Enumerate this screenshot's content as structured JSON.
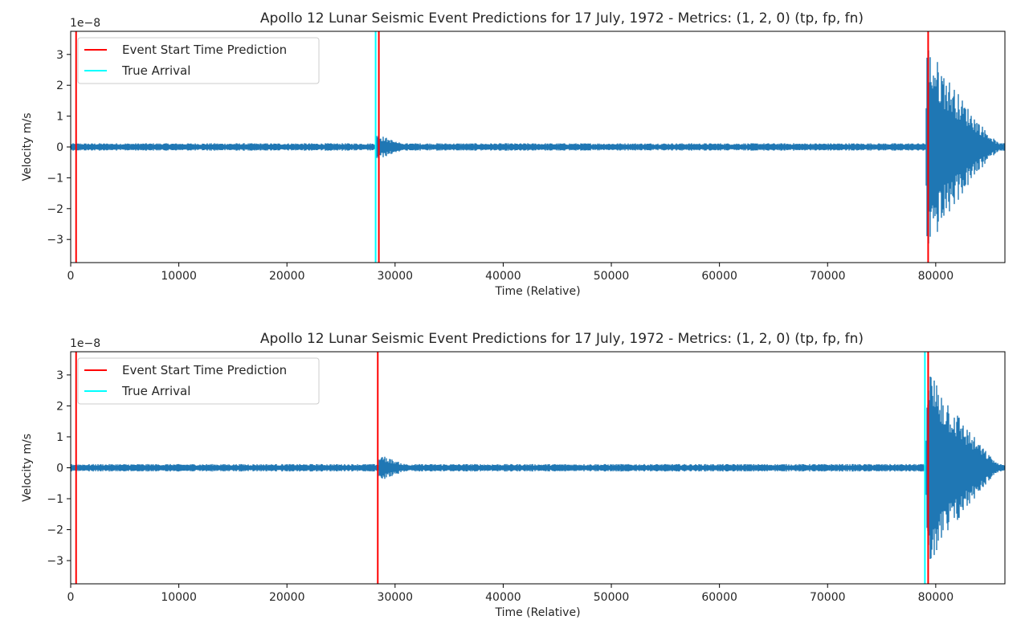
{
  "chart_data": [
    {
      "type": "line",
      "title": "Apollo 12 Lunar Seismic Event Predictions for 17 July, 1972 - Metrics: (1, 2, 0) (tp, fp, fn)",
      "xlabel": "Time (Relative)",
      "ylabel": "Velocity m/s",
      "y_offset_label": "1e−8",
      "xlim": [
        0,
        86400
      ],
      "ylim": [
        -3.75,
        3.75
      ],
      "x_ticks": [
        0,
        10000,
        20000,
        30000,
        40000,
        50000,
        60000,
        70000,
        80000
      ],
      "x_tick_labels": [
        "0",
        "10000",
        "20000",
        "30000",
        "40000",
        "50000",
        "60000",
        "70000",
        "80000"
      ],
      "y_ticks": [
        -3,
        -2,
        -1,
        0,
        1,
        2,
        3
      ],
      "y_tick_labels": [
        "−3",
        "−2",
        "−1",
        "0",
        "1",
        "2",
        "3"
      ],
      "grid": false,
      "legend_position": "top-left",
      "colors": {
        "signal": "#1f77b4",
        "prediction": "#ff0000",
        "true_arrival": "#00ffff"
      },
      "signal": {
        "noise_amplitude": 0.12,
        "events": [
          {
            "start": 28200,
            "peak": 0.45,
            "decay_end": 32000
          },
          {
            "start": 79100,
            "peak": 3.45,
            "decay_end": 86400
          }
        ]
      },
      "vlines": [
        {
          "series": "Event Start Time Prediction",
          "x": 500,
          "color": "#ff0000"
        },
        {
          "series": "Event Start Time Prediction",
          "x": 28500,
          "color": "#ff0000"
        },
        {
          "series": "Event Start Time Prediction",
          "x": 79300,
          "color": "#ff0000"
        },
        {
          "series": "True Arrival",
          "x": 28200,
          "color": "#00ffff"
        }
      ],
      "legend": [
        {
          "label": "Event Start Time Prediction",
          "color": "#ff0000"
        },
        {
          "label": "True Arrival",
          "color": "#00ffff"
        }
      ]
    },
    {
      "type": "line",
      "title": "Apollo 12 Lunar Seismic Event Predictions for 17 July, 1972 - Metrics: (1, 2, 0) (tp, fp, fn)",
      "xlabel": "Time (Relative)",
      "ylabel": "Velocity m/s",
      "y_offset_label": "1e−8",
      "xlim": [
        0,
        86400
      ],
      "ylim": [
        -3.75,
        3.75
      ],
      "x_ticks": [
        0,
        10000,
        20000,
        30000,
        40000,
        50000,
        60000,
        70000,
        80000
      ],
      "x_tick_labels": [
        "0",
        "10000",
        "20000",
        "30000",
        "40000",
        "50000",
        "60000",
        "70000",
        "80000"
      ],
      "y_ticks": [
        -3,
        -2,
        -1,
        0,
        1,
        2,
        3
      ],
      "y_tick_labels": [
        "−3",
        "−2",
        "−1",
        "0",
        "1",
        "2",
        "3"
      ],
      "grid": false,
      "legend_position": "top-left",
      "colors": {
        "signal": "#1f77b4",
        "prediction": "#ff0000",
        "true_arrival": "#00ffff"
      },
      "signal": {
        "noise_amplitude": 0.12,
        "events": [
          {
            "start": 28500,
            "peak": 0.45,
            "decay_end": 32300
          },
          {
            "start": 79100,
            "peak": 3.45,
            "decay_end": 86400
          }
        ]
      },
      "vlines": [
        {
          "series": "Event Start Time Prediction",
          "x": 500,
          "color": "#ff0000"
        },
        {
          "series": "Event Start Time Prediction",
          "x": 28400,
          "color": "#ff0000"
        },
        {
          "series": "Event Start Time Prediction",
          "x": 79300,
          "color": "#ff0000"
        },
        {
          "series": "True Arrival",
          "x": 79000,
          "color": "#00ffff"
        }
      ],
      "legend": [
        {
          "label": "Event Start Time Prediction",
          "color": "#ff0000"
        },
        {
          "label": "True Arrival",
          "color": "#00ffff"
        }
      ]
    }
  ]
}
